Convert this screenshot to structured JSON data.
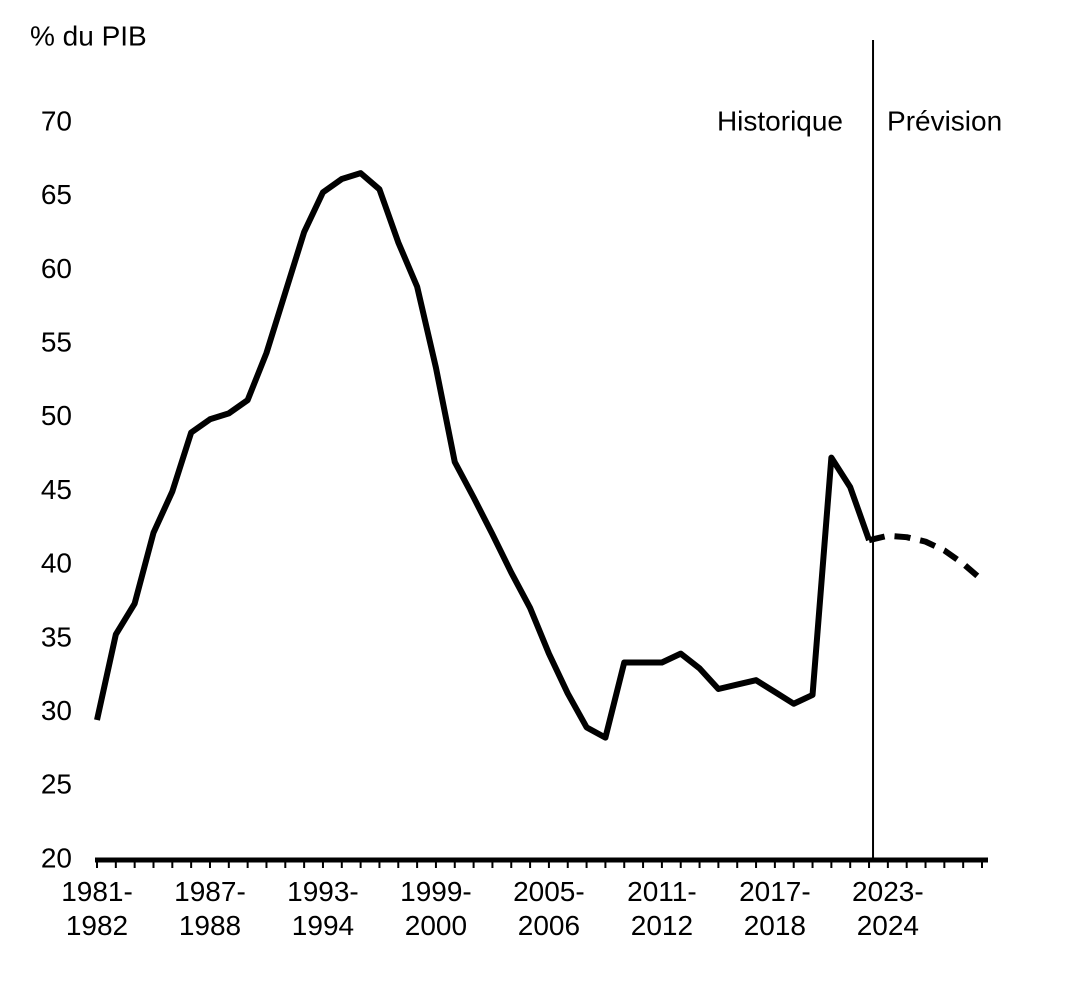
{
  "chart_data": {
    "type": "line",
    "y_label": "% du PIB",
    "annotations": [
      "Historique",
      "Prévision"
    ],
    "categories": [
      "1981-\n1982",
      null,
      null,
      null,
      null,
      null,
      "1987-\n1988",
      null,
      null,
      null,
      null,
      null,
      "1993-\n1994",
      null,
      null,
      null,
      null,
      null,
      "1999-\n2000",
      null,
      null,
      null,
      null,
      null,
      "2005-\n2006",
      null,
      null,
      null,
      null,
      null,
      "2011-\n2012",
      null,
      null,
      null,
      null,
      null,
      "2017-\n2018",
      null,
      null,
      null,
      null,
      null,
      "2023-\n2024",
      null,
      null,
      null,
      null,
      null
    ],
    "series": [
      {
        "color": "#000000",
        "dash": false,
        "values": [
          29.5,
          35.3,
          37.4,
          42.2,
          45.0,
          49.0,
          49.9,
          50.3,
          51.2,
          54.4,
          58.5,
          62.6,
          65.3,
          66.2,
          66.6,
          65.5,
          61.9,
          58.9,
          53.4,
          47.0,
          44.6,
          42.1,
          39.5,
          37.1,
          34.0,
          31.3,
          29.0,
          28.3,
          33.4,
          33.4,
          33.4,
          34.0,
          33.0,
          31.6,
          31.9,
          32.2,
          31.4,
          30.6,
          31.2,
          47.3,
          45.3,
          41.7,
          null,
          null,
          null,
          null,
          null,
          null
        ]
      },
      {
        "color": "#000000",
        "dash": true,
        "values": [
          null,
          null,
          null,
          null,
          null,
          null,
          null,
          null,
          null,
          null,
          null,
          null,
          null,
          null,
          null,
          null,
          null,
          null,
          null,
          null,
          null,
          null,
          null,
          null,
          null,
          null,
          null,
          null,
          null,
          null,
          null,
          null,
          null,
          null,
          null,
          null,
          null,
          null,
          null,
          null,
          null,
          41.7,
          42.0,
          41.9,
          41.6,
          41.0,
          40.1,
          39.0
        ]
      }
    ],
    "ylim": [
      20,
      70
    ],
    "yticks": [
      20,
      25,
      30,
      35,
      40,
      45,
      50,
      55,
      60,
      65,
      70
    ],
    "grid": false
  }
}
